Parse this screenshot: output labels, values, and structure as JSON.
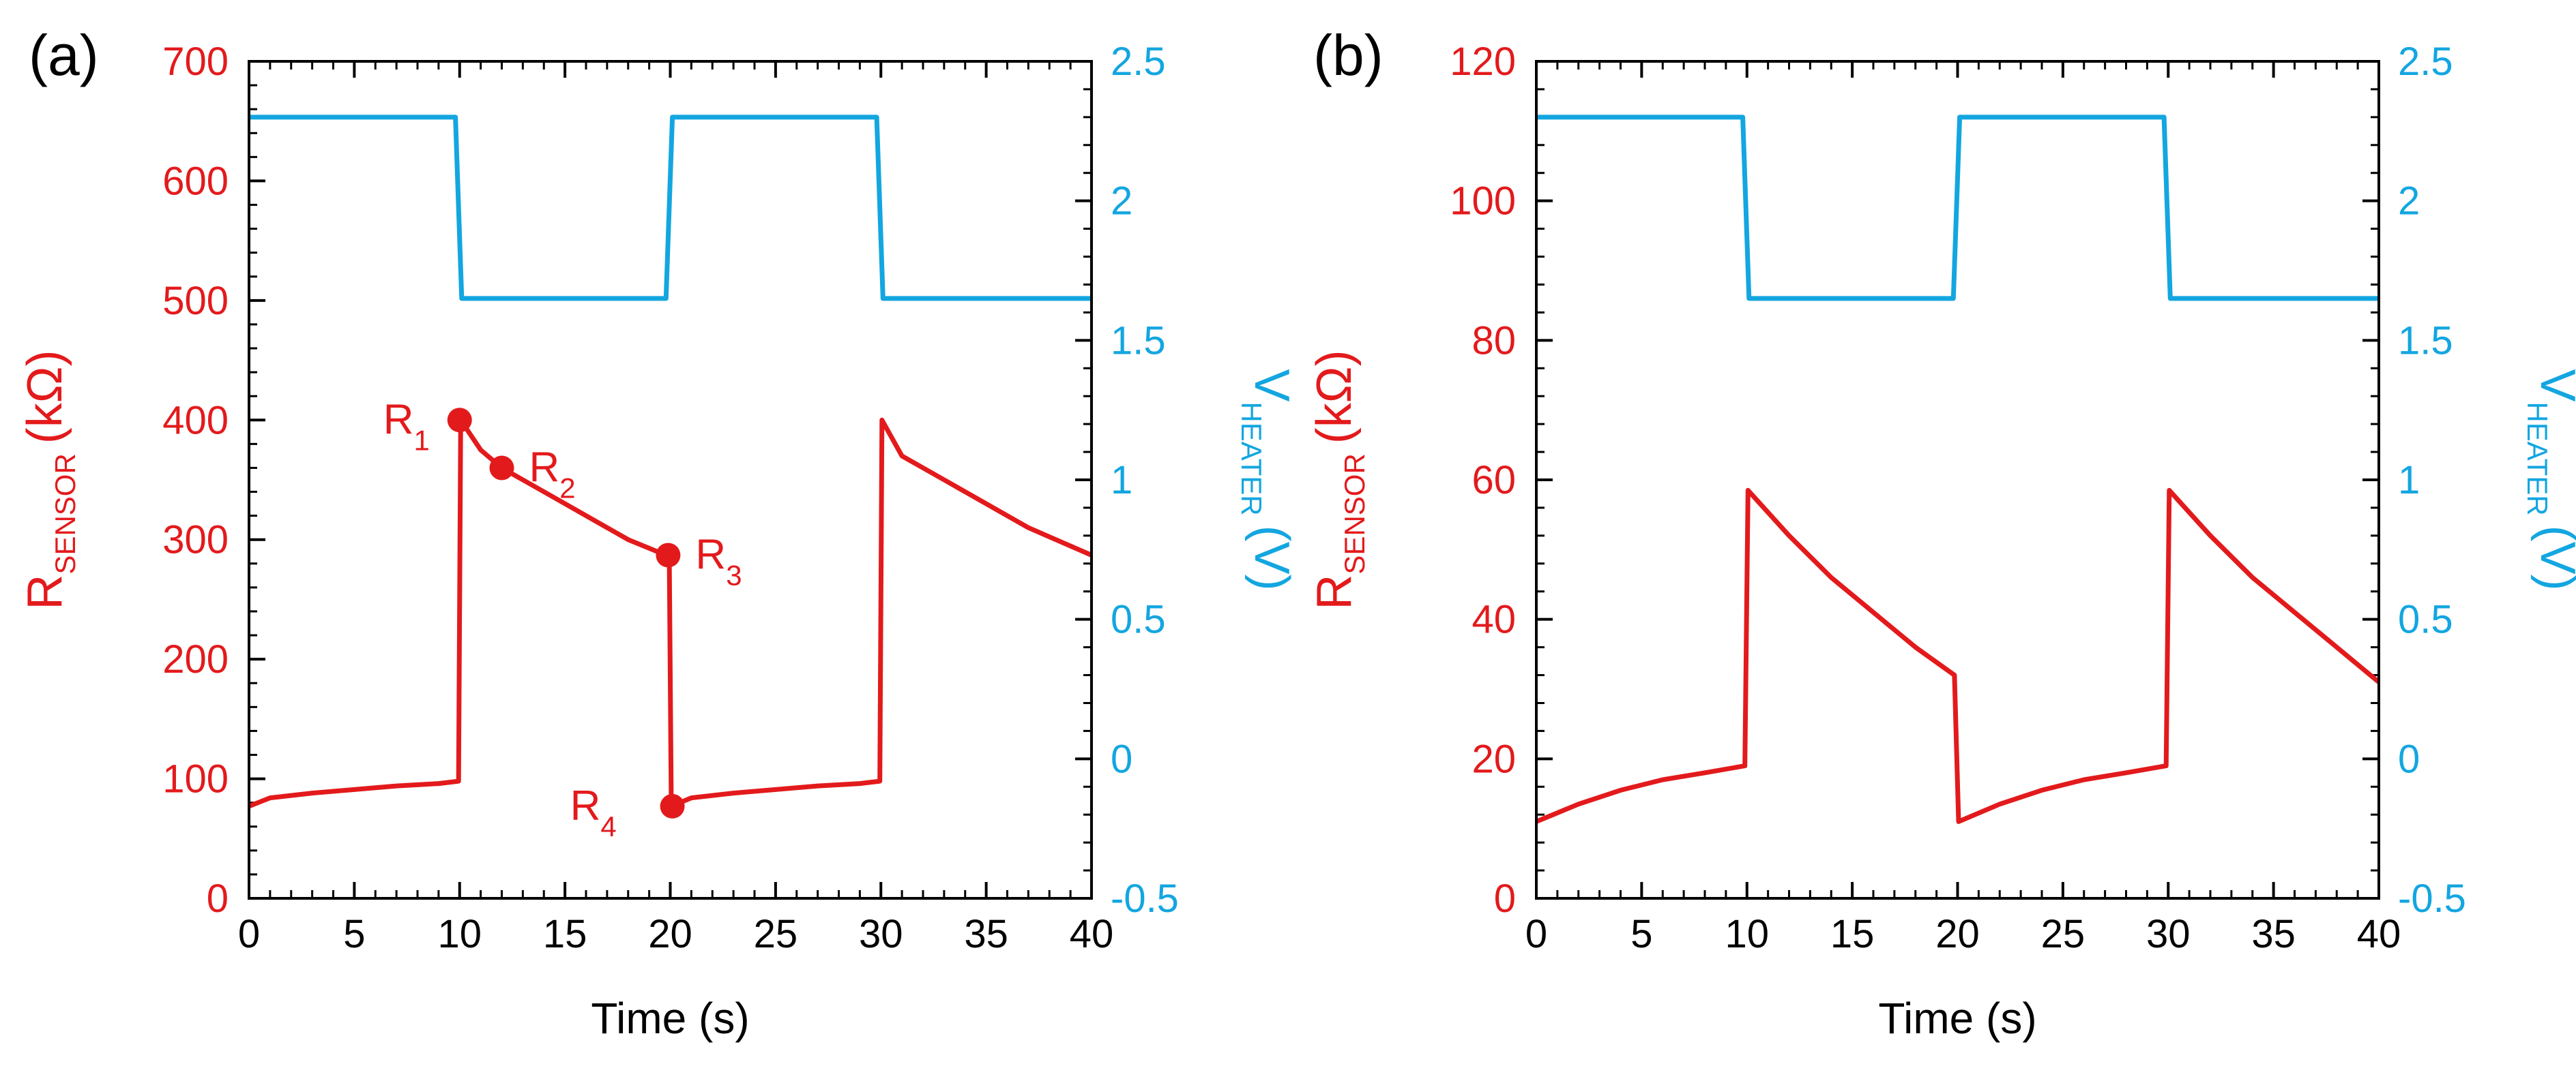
{
  "colors": {
    "sensor": "#e31a1c",
    "heater": "#13a6e0",
    "axis": "#000000"
  },
  "chart_data": [
    {
      "type": "line",
      "panel_label": "(a)",
      "xlabel": "Time (s)",
      "xlim": [
        0,
        40
      ],
      "xticks": [
        0,
        5,
        10,
        15,
        20,
        25,
        30,
        35,
        40
      ],
      "ylabel_left": {
        "main": "R",
        "sub": "SENSOR",
        "unit": "(kΩ)"
      },
      "ylim_left": [
        0,
        700
      ],
      "yticks_left": [
        0,
        100,
        200,
        300,
        400,
        500,
        600,
        700
      ],
      "ylabel_right": {
        "main": "V",
        "sub": "HEATER",
        "unit": "(V)"
      },
      "ylim_right": [
        -0.5,
        2.5
      ],
      "yticks_right": [
        "-0.5",
        "0",
        "0.5",
        "1",
        "1.5",
        "2",
        "2.5"
      ],
      "yticks_right_values": [
        -0.5,
        0,
        0.5,
        1,
        1.5,
        2,
        2.5
      ],
      "series": [
        {
          "name": "V_HEATER",
          "axis": "right",
          "x": [
            0,
            9.8,
            10.1,
            19.8,
            20.1,
            29.8,
            30.1,
            40
          ],
          "y": [
            2.3,
            2.3,
            1.65,
            1.65,
            2.3,
            2.3,
            1.65,
            1.65
          ]
        },
        {
          "name": "R_SENSOR",
          "axis": "left",
          "x": [
            0,
            1,
            3,
            5,
            7,
            9,
            9.95,
            10.05,
            11,
            12,
            14,
            16,
            18,
            19.8,
            19.95,
            20.05,
            21,
            23,
            25,
            27,
            29,
            29.95,
            30.05,
            31,
            33,
            35,
            37,
            40
          ],
          "y": [
            77,
            84,
            88,
            91,
            94,
            96,
            98,
            400,
            375,
            360,
            340,
            320,
            300,
            287,
            290,
            77,
            84,
            88,
            91,
            94,
            96,
            98,
            400,
            370,
            350,
            330,
            310,
            287
          ]
        }
      ],
      "markers": [
        {
          "label": "R",
          "sub": "1",
          "x": 10,
          "y": 400
        },
        {
          "label": "R",
          "sub": "2",
          "x": 12,
          "y": 360
        },
        {
          "label": "R",
          "sub": "3",
          "x": 19.9,
          "y": 287
        },
        {
          "label": "R",
          "sub": "4",
          "x": 20.1,
          "y": 77
        }
      ]
    },
    {
      "type": "line",
      "panel_label": "(b)",
      "xlabel": "Time (s)",
      "xlim": [
        0,
        40
      ],
      "xticks": [
        0,
        5,
        10,
        15,
        20,
        25,
        30,
        35,
        40
      ],
      "ylabel_left": {
        "main": "R",
        "sub": "SENSOR",
        "unit": "(kΩ)"
      },
      "ylim_left": [
        0,
        120
      ],
      "yticks_left": [
        0,
        20,
        40,
        60,
        80,
        100,
        120
      ],
      "ylabel_right": {
        "main": "V",
        "sub": "HEATER",
        "unit": "(V)"
      },
      "ylim_right": [
        -0.5,
        2.5
      ],
      "yticks_right": [
        "-0.5",
        "0",
        "0.5",
        "1",
        "1.5",
        "2",
        "2.5"
      ],
      "yticks_right_values": [
        -0.5,
        0,
        0.5,
        1,
        1.5,
        2,
        2.5
      ],
      "series": [
        {
          "name": "V_HEATER",
          "axis": "right",
          "x": [
            0,
            9.8,
            10.1,
            19.8,
            20.1,
            29.8,
            30.1,
            40
          ],
          "y": [
            2.3,
            2.3,
            1.65,
            1.65,
            2.3,
            2.3,
            1.65,
            1.65
          ]
        },
        {
          "name": "R_SENSOR",
          "axis": "left",
          "x": [
            0,
            2,
            4,
            6,
            8,
            9.9,
            10.05,
            12,
            14,
            16,
            18,
            19.85,
            20.05,
            22,
            24,
            26,
            28,
            29.9,
            30.05,
            32,
            34,
            36,
            38,
            40
          ],
          "y": [
            11,
            13.5,
            15.5,
            17,
            18,
            19,
            58.5,
            52,
            46,
            41,
            36,
            32,
            11,
            13.5,
            15.5,
            17,
            18,
            19,
            58.5,
            52,
            46,
            41,
            36,
            31
          ]
        }
      ],
      "markers": []
    }
  ]
}
